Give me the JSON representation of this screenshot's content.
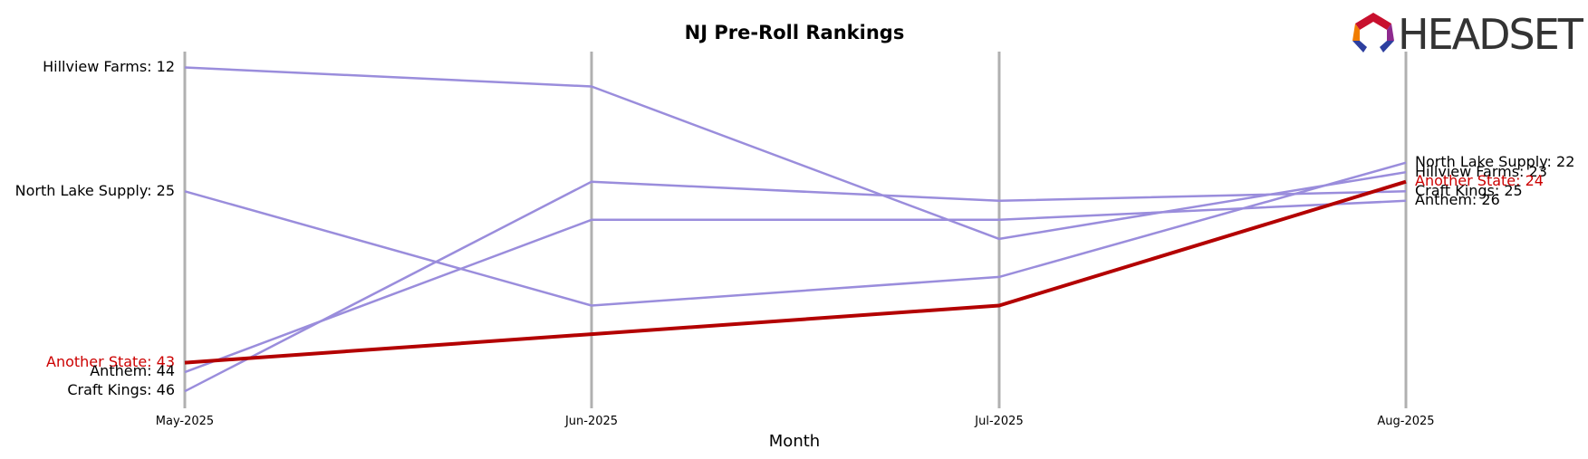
{
  "chart_data": {
    "type": "line",
    "title": "NJ Pre-Roll Rankings",
    "xlabel": "Month",
    "ylabel": "",
    "categories": [
      "May-2025",
      "Jun-2025",
      "Jul-2025",
      "Aug-2025"
    ],
    "y_inverted": true,
    "grid": false,
    "series": [
      {
        "name": "Hillview Farms",
        "values": [
          12,
          14,
          30,
          23
        ],
        "color": "#9a8ddc",
        "highlight": false
      },
      {
        "name": "North Lake Supply",
        "values": [
          25,
          37,
          34,
          22
        ],
        "color": "#9a8ddc",
        "highlight": false
      },
      {
        "name": "Anthem",
        "values": [
          44,
          28,
          28,
          26
        ],
        "color": "#9a8ddc",
        "highlight": false
      },
      {
        "name": "Craft Kings",
        "values": [
          46,
          24,
          26,
          25
        ],
        "color": "#9a8ddc",
        "highlight": false
      },
      {
        "name": "Another State",
        "values": [
          43,
          40,
          37,
          24
        ],
        "color": "#b30000",
        "highlight": true
      }
    ],
    "start_labels": [
      {
        "text": "Hillview Farms: 12",
        "series": 0
      },
      {
        "text": "North Lake Supply: 25",
        "series": 1
      },
      {
        "text": "Another State: 43",
        "series": 4
      },
      {
        "text": "Anthem: 44",
        "series": 2
      },
      {
        "text": "Craft Kings: 46",
        "series": 3
      }
    ],
    "end_labels": [
      {
        "text": "North Lake Supply: 22",
        "series": 1
      },
      {
        "text": "Hillview Farms: 23",
        "series": 0
      },
      {
        "text": "Another State: 24",
        "series": 4
      },
      {
        "text": "Craft Kings: 25",
        "series": 3
      },
      {
        "text": "Anthem: 26",
        "series": 2
      }
    ]
  },
  "branding": {
    "logo_text": "HEADSET"
  },
  "colors": {
    "axis_line": "#b0b0b0",
    "muted_series": "#9a8ddc",
    "highlight_series": "#b30000",
    "highlight_label": "#cc0000",
    "logo_red": "#c8102e",
    "logo_orange": "#f07d00",
    "logo_purple": "#8e2a8e",
    "logo_blue": "#2d3f9f"
  }
}
